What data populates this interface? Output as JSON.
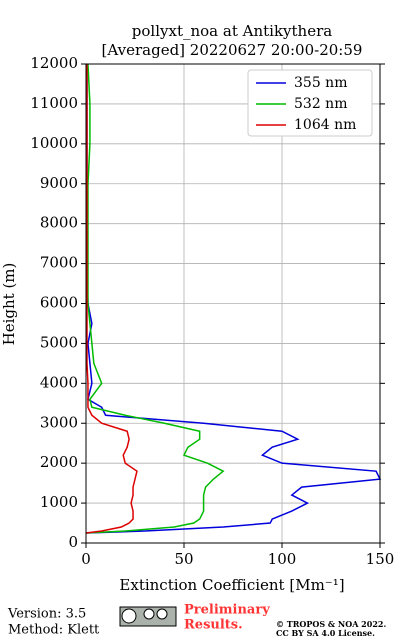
{
  "chart_data": {
    "type": "line",
    "title": [
      "pollyxt_noa at Antikythera",
      "[Averaged] 20220627 20:00-20:59"
    ],
    "x_label": "Extinction Coefficient [Mm⁻¹]",
    "y_label": "Height (m)",
    "y": [
      250,
      300,
      400,
      500,
      600,
      800,
      1000,
      1200,
      1400,
      1600,
      1800,
      2000,
      2200,
      2400,
      2600,
      2800,
      3000,
      3200,
      3400,
      3600,
      3800,
      4000,
      4500,
      5000,
      5500,
      6000,
      7000,
      8000,
      9000,
      10000,
      11000,
      12000
    ],
    "series": [
      {
        "name": "355 nm",
        "color": "#0000dd",
        "values": [
          0,
          30,
          70,
          94,
          95,
          105,
          113,
          105,
          110,
          150,
          148,
          100,
          90,
          95,
          108,
          100,
          60,
          10,
          8,
          1,
          2,
          3,
          2,
          1,
          3,
          1,
          0.5,
          0.5,
          0.5,
          0.5,
          0.5,
          0.5
        ]
      },
      {
        "name": "532 nm",
        "color": "#00bb00",
        "values": [
          0,
          20,
          45,
          55,
          58,
          60,
          60,
          60,
          61,
          65,
          70,
          62,
          50,
          52,
          58,
          58,
          40,
          20,
          3,
          2,
          5,
          8,
          4,
          3,
          2,
          1,
          1,
          1,
          1,
          2,
          2,
          1
        ]
      },
      {
        "name": "1064 nm",
        "color": "#dd0000",
        "values": [
          0,
          8,
          18,
          22,
          24,
          24,
          23,
          24,
          24,
          25,
          26,
          20,
          19,
          21,
          22,
          21,
          8,
          3,
          1,
          1,
          1,
          1,
          0.5,
          0.5,
          0.5,
          0.5,
          0.5,
          0.5,
          0.5,
          0.5,
          0.5,
          0.5
        ]
      }
    ],
    "xlim": [
      0,
      150
    ],
    "xticks": [
      0,
      50,
      100,
      150
    ],
    "ylim": [
      0,
      12000
    ],
    "yticks": [
      0,
      1000,
      2000,
      3000,
      4000,
      5000,
      6000,
      7000,
      8000,
      9000,
      10000,
      11000,
      12000
    ],
    "grid": true,
    "legend": "upper right"
  },
  "footer": {
    "version": "Version: 3.5",
    "method": "Method: Klett",
    "preliminary": [
      "Preliminary",
      "Results."
    ],
    "copyright": [
      "© TROPOS & NOA 2022.",
      "CC BY SA 4.0 License."
    ]
  }
}
